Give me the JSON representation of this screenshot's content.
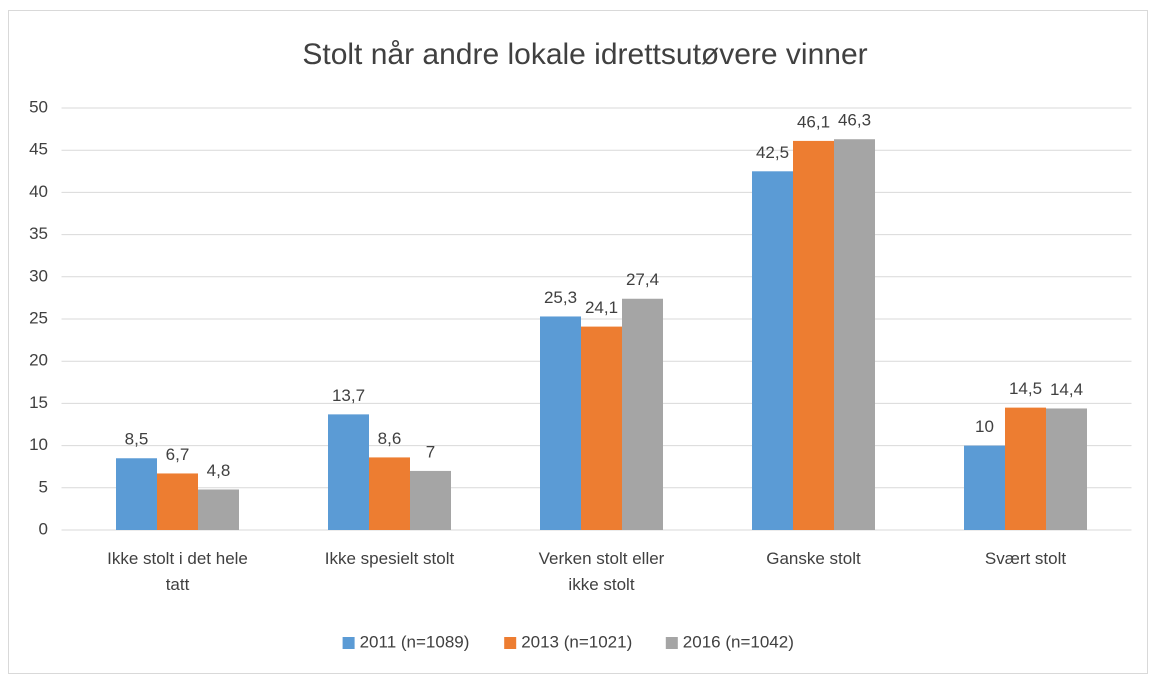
{
  "chart_data": {
    "type": "bar",
    "title": "Stolt når andre lokale idrettsutøvere vinner",
    "categories": [
      "Ikke stolt i det hele tatt",
      "Ikke spesielt stolt",
      "Verken stolt eller ikke stolt",
      "Ganske stolt",
      "Svært stolt"
    ],
    "series": [
      {
        "name": "2011 (n=1089)",
        "color": "#5b9bd5",
        "values": [
          8.5,
          13.7,
          25.3,
          42.5,
          10
        ],
        "value_labels": [
          "8,5",
          "13,7",
          "25,3",
          "42,5",
          "10"
        ]
      },
      {
        "name": "2013 (n=1021)",
        "color": "#ed7d31",
        "values": [
          6.7,
          8.6,
          24.1,
          46.1,
          14.5
        ],
        "value_labels": [
          "6,7",
          "8,6",
          "24,1",
          "46,1",
          "14,5"
        ]
      },
      {
        "name": "2016 (n=1042)",
        "color": "#a5a5a5",
        "values": [
          4.8,
          7,
          27.4,
          46.3,
          14.4
        ],
        "value_labels": [
          "4,8",
          "7",
          "27,4",
          "46,3",
          "14,4"
        ]
      }
    ],
    "ylim": [
      0,
      50
    ],
    "yticks": [
      0,
      5,
      10,
      15,
      20,
      25,
      30,
      35,
      40,
      45,
      50
    ],
    "grid": true,
    "legend": "bottom"
  }
}
